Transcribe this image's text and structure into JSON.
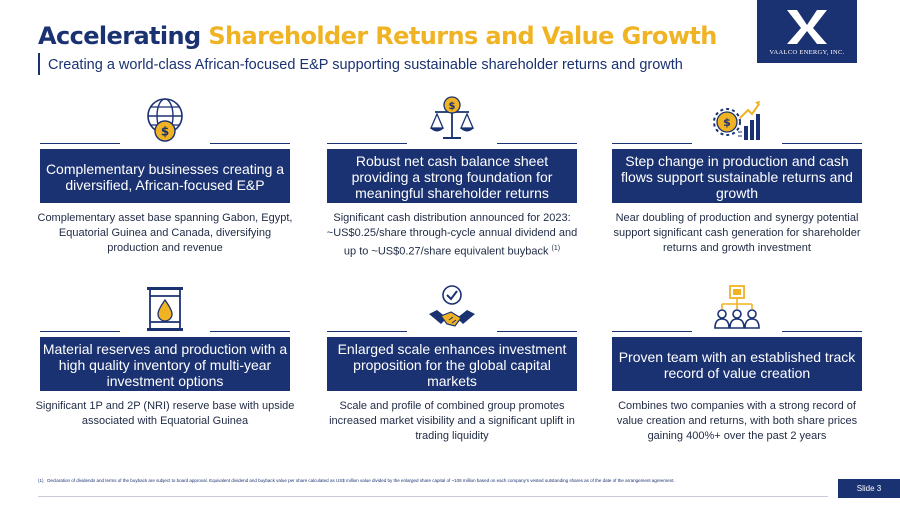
{
  "header": {
    "title_part1": "Accelerating",
    "title_part2": "Shareholder Returns and Value Growth",
    "subtitle": "Creating a world-class African-focused E&P supporting sustainable shareholder returns and growth"
  },
  "logo": {
    "text": "VAALCO ENERGY, INC."
  },
  "colors": {
    "navy": "#1b3272",
    "gold": "#f0b323",
    "white": "#ffffff"
  },
  "cards": [
    {
      "icon": "globe-dollar-icon",
      "banner": "Complementary businesses creating a diversified, African-focused E&P",
      "description": "Complementary asset base spanning Gabon, Egypt, Equatorial Guinea and Canada, diversifying production and revenue"
    },
    {
      "icon": "scales-dollar-icon",
      "banner": "Robust net cash balance sheet providing a strong foundation for meaningful shareholder returns",
      "description": "Significant cash distribution announced for 2023: ~US$0.25/share through-cycle annual dividend and up to ~US$0.27/share equivalent buyback",
      "footnote_ref": "(1)"
    },
    {
      "icon": "growth-chart-icon",
      "banner": "Step change in production and cash flows support sustainable returns and growth",
      "description": "Near doubling of production and synergy potential support significant cash generation for shareholder returns and growth investment"
    },
    {
      "icon": "oil-barrel-icon",
      "banner": "Material reserves and production with a high quality inventory of multi-year investment options",
      "description": "Significant 1P and 2P (NRI) reserve base with upside associated with Equatorial Guinea"
    },
    {
      "icon": "handshake-check-icon",
      "banner": "Enlarged scale enhances investment proposition for the global capital markets",
      "description": "Scale and profile of combined group promotes increased market visibility and a significant uplift in trading liquidity"
    },
    {
      "icon": "team-hierarchy-icon",
      "banner": "Proven team with an established track record of value creation",
      "description": "Combines two companies with a strong record of value creation and returns, with both share prices gaining 400%+ over the past 2 years"
    }
  ],
  "footer": {
    "footnote_number": "(1)",
    "footnote": "Declaration of dividends and terms of the buyback are subject to board approval. Equivalent dividend and buyback value per share calculated as US$ million value divided by the enlarged share capital of ~108 million based on each company's vested outstanding shares as of the date of the arrangement agreement.",
    "slide_label": "Slide 3"
  }
}
